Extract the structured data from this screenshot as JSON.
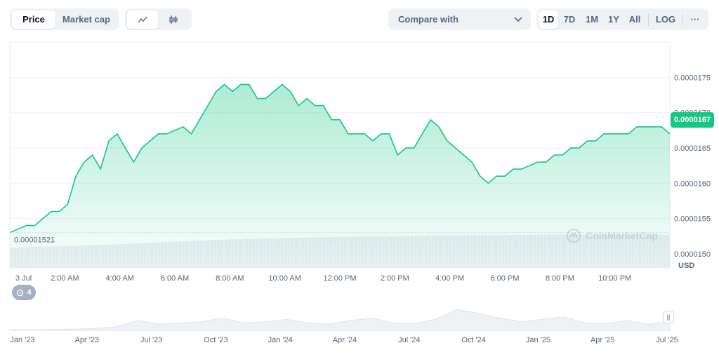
{
  "toolbar": {
    "type_tabs": [
      "Price",
      "Market cap"
    ],
    "compare_label": "Compare with",
    "ranges": [
      "1D",
      "7D",
      "1M",
      "1Y",
      "All"
    ],
    "log_label": "LOG",
    "more_label": "···"
  },
  "chart_data": {
    "type": "area",
    "title": "",
    "currency": "USD",
    "current_price_label": "0.0000167",
    "open_price_label": "0.00001521",
    "watermark": "CoinMarketCap",
    "events_count": "4",
    "colors": {
      "line": "#16c784",
      "fill_top": "#16c784",
      "price_tag": "#16c784",
      "baseline": "#cfd6e4"
    },
    "grid": true,
    "ylim": [
      1.48e-05,
      1.8e-05
    ],
    "yticks": [
      1.75e-05,
      1.7e-05,
      1.65e-05,
      1.6e-05,
      1.55e-05,
      1.5e-05
    ],
    "ytick_labels": [
      "0.0000175",
      "0.0000170",
      "0.0000165",
      "0.0000160",
      "0.0000155",
      "0.0000150"
    ],
    "xlim": [
      0,
      24
    ],
    "xticks": [
      0.5,
      2,
      4,
      6,
      8,
      10,
      12,
      14,
      16,
      18,
      20,
      22
    ],
    "xtick_labels": [
      "3 Jul",
      "2:00 AM",
      "4:00 AM",
      "6:00 AM",
      "8:00 AM",
      "10:00 AM",
      "12:00 PM",
      "2:00 PM",
      "4:00 PM",
      "6:00 PM",
      "8:00 PM",
      "10:00 PM"
    ],
    "price_series": {
      "x": [
        0,
        0.3,
        0.6,
        0.9,
        1.2,
        1.5,
        1.8,
        2.1,
        2.4,
        2.7,
        3.0,
        3.3,
        3.6,
        3.9,
        4.2,
        4.5,
        4.8,
        5.1,
        5.4,
        5.7,
        6.0,
        6.3,
        6.6,
        6.9,
        7.2,
        7.5,
        7.8,
        8.1,
        8.4,
        8.7,
        9.0,
        9.3,
        9.6,
        9.9,
        10.2,
        10.5,
        10.8,
        11.1,
        11.4,
        11.7,
        12.0,
        12.3,
        12.6,
        12.9,
        13.2,
        13.5,
        13.8,
        14.1,
        14.4,
        14.7,
        15.0,
        15.3,
        15.6,
        15.9,
        16.2,
        16.5,
        16.8,
        17.1,
        17.4,
        17.7,
        18.0,
        18.3,
        18.6,
        18.9,
        19.2,
        19.5,
        19.8,
        20.1,
        20.4,
        20.7,
        21.0,
        21.3,
        21.6,
        21.9,
        22.2,
        22.5,
        22.8,
        23.1,
        23.4,
        23.7,
        24.0
      ],
      "y": [
        1.53e-05,
        1.535e-05,
        1.54e-05,
        1.54e-05,
        1.55e-05,
        1.56e-05,
        1.56e-05,
        1.57e-05,
        1.61e-05,
        1.63e-05,
        1.64e-05,
        1.62e-05,
        1.66e-05,
        1.67e-05,
        1.65e-05,
        1.63e-05,
        1.65e-05,
        1.66e-05,
        1.67e-05,
        1.67e-05,
        1.675e-05,
        1.68e-05,
        1.67e-05,
        1.69e-05,
        1.71e-05,
        1.73e-05,
        1.74e-05,
        1.73e-05,
        1.74e-05,
        1.74e-05,
        1.72e-05,
        1.72e-05,
        1.73e-05,
        1.74e-05,
        1.73e-05,
        1.71e-05,
        1.72e-05,
        1.71e-05,
        1.71e-05,
        1.69e-05,
        1.69e-05,
        1.67e-05,
        1.67e-05,
        1.67e-05,
        1.66e-05,
        1.67e-05,
        1.67e-05,
        1.64e-05,
        1.65e-05,
        1.65e-05,
        1.67e-05,
        1.69e-05,
        1.68e-05,
        1.66e-05,
        1.65e-05,
        1.64e-05,
        1.63e-05,
        1.61e-05,
        1.6e-05,
        1.61e-05,
        1.61e-05,
        1.62e-05,
        1.62e-05,
        1.625e-05,
        1.63e-05,
        1.63e-05,
        1.64e-05,
        1.64e-05,
        1.65e-05,
        1.65e-05,
        1.66e-05,
        1.66e-05,
        1.67e-05,
        1.67e-05,
        1.67e-05,
        1.67e-05,
        1.68e-05,
        1.68e-05,
        1.68e-05,
        1.68e-05,
        1.67e-05
      ]
    },
    "volume_series": {
      "x": [
        0,
        2,
        4,
        6,
        8,
        10,
        12,
        14,
        16,
        18,
        20,
        22,
        24
      ],
      "relative": [
        0.55,
        0.6,
        0.65,
        0.72,
        0.78,
        0.82,
        0.85,
        0.87,
        0.89,
        0.9,
        0.91,
        0.91,
        0.91
      ]
    },
    "navigator": {
      "tick_labels": [
        "Jan '23",
        "Apr '23",
        "Jul '23",
        "Oct '23",
        "Jan '24",
        "Apr '24",
        "Jul '24",
        "Oct '24",
        "Jan '25",
        "Apr '25",
        "Jul '25"
      ],
      "relative": [
        0.02,
        0.02,
        0.03,
        0.05,
        0.08,
        0.15,
        0.4,
        0.25,
        0.3,
        0.35,
        0.5,
        0.3,
        0.35,
        0.45,
        0.3,
        0.25,
        0.4,
        0.5,
        0.3,
        0.28,
        0.45,
        0.85,
        0.7,
        0.5,
        0.35,
        0.45,
        0.55,
        0.3,
        0.28,
        0.4,
        0.25,
        0.35
      ]
    }
  }
}
